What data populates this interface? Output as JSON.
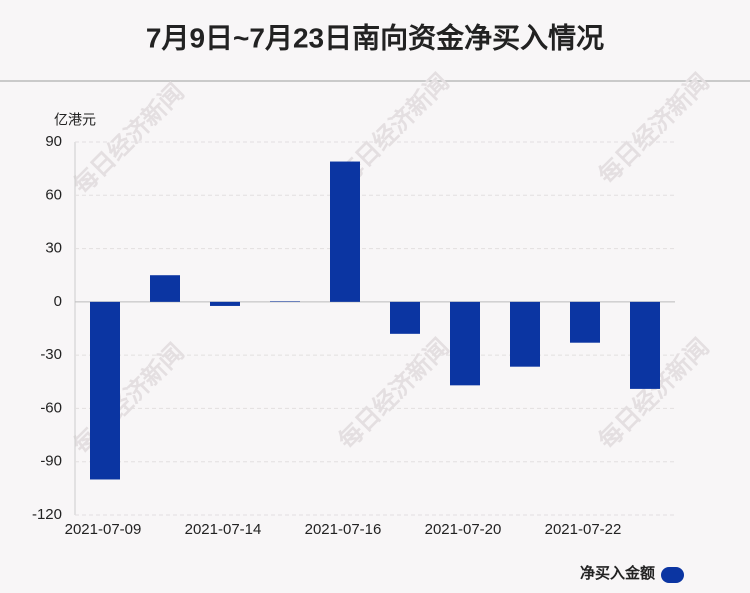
{
  "chart_data": {
    "type": "bar",
    "title": "7月9日~7月23日南向资金净买入情况",
    "y_label": "亿港元",
    "watermark": "每日经济新闻",
    "categories": [
      "2021-07-09",
      null,
      "2021-07-14",
      null,
      "2021-07-16",
      null,
      "2021-07-20",
      null,
      "2021-07-22",
      null
    ],
    "series": [
      {
        "name": "净买入金额",
        "color": "#0b35a2",
        "values": [
          -100,
          15,
          -2.3,
          0.3,
          79,
          -18,
          -47,
          -36.5,
          -23,
          -49
        ]
      }
    ],
    "ylim": [
      -120,
      90
    ],
    "yticks": [
      -120,
      -90,
      -60,
      -30,
      0,
      30,
      60,
      90
    ],
    "grid": true
  }
}
